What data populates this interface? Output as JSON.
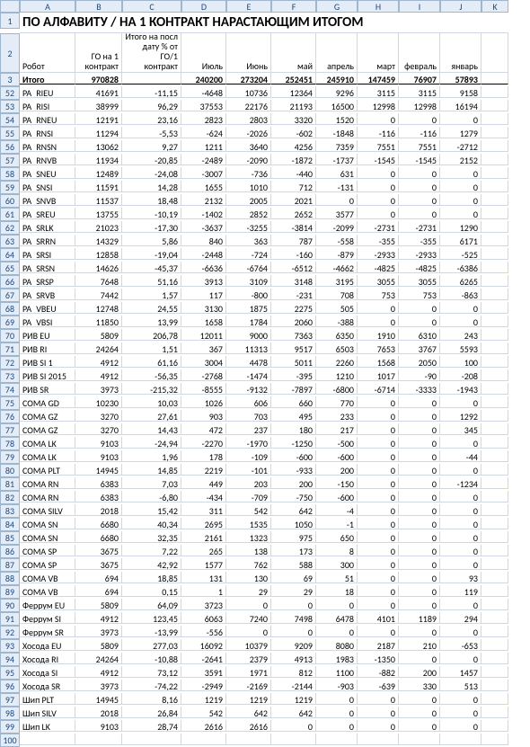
{
  "title": "ПО АЛФАВИТУ / НА 1 КОНТРАКТ НАРАСТАЮЩИМ ИТОГОМ",
  "columns_letters": [
    "",
    "A",
    "B",
    "C",
    "D",
    "E",
    "F",
    "G",
    "H",
    "I",
    "J",
    "K"
  ],
  "headers": {
    "A": "Робот",
    "B": "ГО на 1 контракт",
    "C": "Итого на посл дату % от ГО/1 контракт",
    "D": "Июль",
    "E": "Июнь",
    "F": "май",
    "G": "апрель",
    "H": "март",
    "I": "февраль",
    "J": "январь"
  },
  "totals_label": "Итого",
  "totals": [
    "970828",
    "",
    "240200",
    "273204",
    "252451",
    "245910",
    "147459",
    "76907",
    "57893"
  ],
  "row_start": 52,
  "rows": [
    [
      "PA_RIEU",
      "41691",
      "-11,15",
      "-4648",
      "10736",
      "12364",
      "9296",
      "3115",
      "3115",
      "9158"
    ],
    [
      "PA_RISI",
      "38999",
      "96,29",
      "37553",
      "22176",
      "21193",
      "16500",
      "12998",
      "12998",
      "16194"
    ],
    [
      "PA_RNEU",
      "12191",
      "23,16",
      "2823",
      "2803",
      "3320",
      "1520",
      "0",
      "0",
      "0"
    ],
    [
      "PA_RNSI",
      "11294",
      "-5,53",
      "-624",
      "-2026",
      "-602",
      "-1848",
      "-116",
      "-116",
      "1279"
    ],
    [
      "PA_RNSN",
      "13062",
      "9,27",
      "1211",
      "3640",
      "4256",
      "7359",
      "7551",
      "7551",
      "-2712"
    ],
    [
      "PA_RNVB",
      "11934",
      "-20,85",
      "-2489",
      "-2090",
      "-1872",
      "-1737",
      "-1545",
      "-1545",
      "2152"
    ],
    [
      "PA_SNEU",
      "12489",
      "-24,08",
      "-3007",
      "-736",
      "-440",
      "631",
      "0",
      "0",
      "0"
    ],
    [
      "PA_SNSI",
      "11591",
      "14,28",
      "1655",
      "1010",
      "712",
      "-131",
      "0",
      "0",
      "0"
    ],
    [
      "PA_SNVB",
      "11537",
      "18,48",
      "2132",
      "2005",
      "2021",
      "0",
      "0",
      "0",
      "0"
    ],
    [
      "PA_SREU",
      "13755",
      "-10,19",
      "-1402",
      "2852",
      "2652",
      "3577",
      "0",
      "0",
      "0"
    ],
    [
      "PA_SRLK",
      "21023",
      "-17,30",
      "-3637",
      "-3255",
      "-3814",
      "-2099",
      "-2731",
      "-2731",
      "1290"
    ],
    [
      "PA_SRRN",
      "14329",
      "5,86",
      "840",
      "363",
      "787",
      "-558",
      "-355",
      "-355",
      "6171"
    ],
    [
      "PA_SRSI",
      "12858",
      "-19,04",
      "-2448",
      "-724",
      "-160",
      "-879",
      "-2933",
      "-2933",
      "-525"
    ],
    [
      "PA_SRSN",
      "14626",
      "-45,37",
      "-6636",
      "-6764",
      "-6512",
      "-4662",
      "-4825",
      "-4825",
      "-6386"
    ],
    [
      "PA_SRSP",
      "7648",
      "51,16",
      "3913",
      "3109",
      "3148",
      "3195",
      "3055",
      "3055",
      "6265"
    ],
    [
      "PA_SRVB",
      "7442",
      "1,57",
      "117",
      "-800",
      "-231",
      "708",
      "753",
      "753",
      "-863"
    ],
    [
      "PA_VBEU",
      "12748",
      "24,55",
      "3130",
      "1875",
      "2275",
      "505",
      "0",
      "0",
      "0"
    ],
    [
      "PA_VBSI",
      "11850",
      "13,99",
      "1658",
      "1784",
      "2060",
      "-388",
      "0",
      "0",
      "0"
    ],
    [
      "РИВ EU",
      "5809",
      "206,78",
      "12011",
      "9000",
      "7363",
      "6350",
      "1910",
      "6310",
      "243"
    ],
    [
      "РИВ RI",
      "24264",
      "1,51",
      "367",
      "11313",
      "9517",
      "6503",
      "7653",
      "3767",
      "5593"
    ],
    [
      "РИВ SI 1",
      "4912",
      "61,16",
      "3004",
      "4478",
      "5011",
      "2260",
      "1568",
      "2050",
      "100"
    ],
    [
      "РИВ SI 2015",
      "4912",
      "-56,35",
      "-2768",
      "-1474",
      "-395",
      "1210",
      "1017",
      "-90",
      "-208"
    ],
    [
      "РИВ SR",
      "3973",
      "-215,32",
      "-8555",
      "-9132",
      "-7897",
      "-6800",
      "-6714",
      "-3333",
      "-1943"
    ],
    [
      "COMA GD",
      "10230",
      "10,03",
      "1026",
      "606",
      "660",
      "770",
      "0",
      "0",
      "0"
    ],
    [
      "COMA GZ",
      "3270",
      "27,61",
      "903",
      "703",
      "495",
      "233",
      "0",
      "0",
      "1292"
    ],
    [
      "COMA GZ",
      "3270",
      "14,43",
      "472",
      "237",
      "180",
      "217",
      "0",
      "0",
      "345"
    ],
    [
      "COMA LK",
      "9103",
      "-24,94",
      "-2270",
      "-1970",
      "-1250",
      "-500",
      "0",
      "0",
      "0"
    ],
    [
      "COMA LK",
      "9103",
      "1,96",
      "178",
      "-109",
      "-600",
      "-600",
      "0",
      "0",
      "-44"
    ],
    [
      "COMA PLT",
      "14945",
      "14,85",
      "2219",
      "-101",
      "-933",
      "200",
      "0",
      "0",
      "0"
    ],
    [
      "COMA RN",
      "6383",
      "7,03",
      "449",
      "203",
      "200",
      "-150",
      "0",
      "0",
      "-1234"
    ],
    [
      "COMA RN",
      "6383",
      "-6,80",
      "-434",
      "-709",
      "-750",
      "-600",
      "0",
      "0",
      "0"
    ],
    [
      "COMA SILV",
      "2018",
      "15,42",
      "311",
      "542",
      "642",
      "-4",
      "0",
      "0",
      "0"
    ],
    [
      "COMA SN",
      "6680",
      "40,34",
      "2695",
      "1535",
      "1050",
      "-1",
      "0",
      "0",
      "0"
    ],
    [
      "COMA SN",
      "6680",
      "32,35",
      "2161",
      "1323",
      "975",
      "650",
      "0",
      "0",
      "0"
    ],
    [
      "COMA SP",
      "3675",
      "7,22",
      "265",
      "138",
      "173",
      "8",
      "0",
      "0",
      "0"
    ],
    [
      "COMA SP",
      "3675",
      "42,92",
      "1577",
      "762",
      "588",
      "300",
      "0",
      "0",
      "0"
    ],
    [
      "COMA VB",
      "694",
      "18,85",
      "131",
      "130",
      "69",
      "51",
      "0",
      "0",
      "93"
    ],
    [
      "COMA VB",
      "694",
      "0,15",
      "1",
      "29",
      "29",
      "18",
      "0",
      "0",
      "119"
    ],
    [
      "Феррум EU",
      "5809",
      "64,09",
      "3723",
      "0",
      "0",
      "0",
      "0",
      "0",
      "0"
    ],
    [
      "Феррум SI",
      "4912",
      "123,45",
      "6063",
      "7240",
      "7498",
      "6478",
      "4101",
      "1189",
      "294"
    ],
    [
      "Феррум SR",
      "3973",
      "-13,99",
      "-556",
      "0",
      "0",
      "0",
      "0",
      "0",
      "0"
    ],
    [
      "Хосода EU",
      "5809",
      "277,03",
      "16092",
      "10379",
      "9209",
      "8080",
      "2187",
      "210",
      "-653"
    ],
    [
      "Хосода RI",
      "24264",
      "-10,88",
      "-2641",
      "2379",
      "4913",
      "1983",
      "-1350",
      "0",
      "0"
    ],
    [
      "Хосода SI",
      "4912",
      "73,12",
      "3591",
      "1971",
      "812",
      "1100",
      "-882",
      "200",
      "1457"
    ],
    [
      "Хосода SR",
      "3973",
      "-74,22",
      "-2949",
      "-2169",
      "-2144",
      "-903",
      "-639",
      "330",
      "513"
    ],
    [
      "Шип PLT",
      "14945",
      "8,16",
      "1219",
      "1219",
      "1219",
      "0",
      "0",
      "0",
      "0"
    ],
    [
      "Шип SILV",
      "2018",
      "26,84",
      "542",
      "642",
      "642",
      "0",
      "0",
      "0",
      "0"
    ],
    [
      "Шип LK",
      "9103",
      "28,74",
      "2616",
      "2616",
      "0",
      "0",
      "0",
      "0",
      "0"
    ]
  ]
}
